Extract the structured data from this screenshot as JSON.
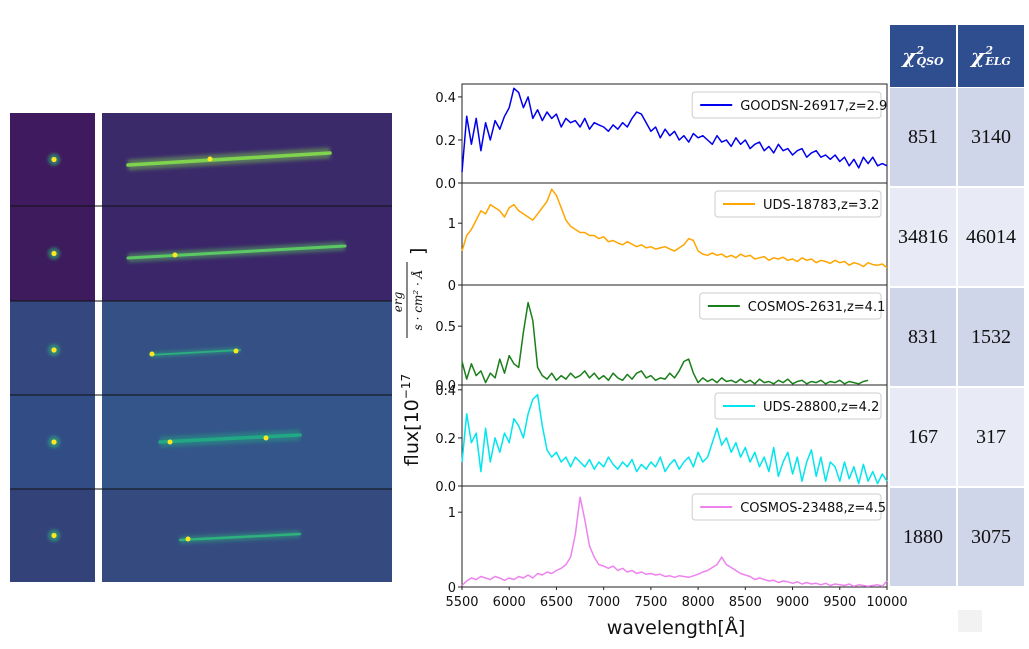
{
  "image_panels": {
    "rows": 5,
    "columns": [
      "direct-image",
      "dispersed-spectrum"
    ]
  },
  "table": {
    "headers": [
      {
        "sym": "χ",
        "sup": "2",
        "sub": "QSO"
      },
      {
        "sym": "χ",
        "sup": "2",
        "sub": "ELG"
      }
    ],
    "rows": [
      [
        "851",
        "3140"
      ],
      [
        "34816",
        "46014"
      ],
      [
        "831",
        "1532"
      ],
      [
        "167",
        "317"
      ],
      [
        "1880",
        "3075"
      ]
    ],
    "colors": {
      "header": "#2e4e8f",
      "row_a": "#cfd6ea",
      "row_b": "#e8ebf5"
    }
  },
  "chart_data": {
    "type": "line",
    "xlabel": "wavelength[Å]",
    "ylabel": "flux[10⁻¹⁷ erg / s·cm²·Å]",
    "xlim": [
      5500,
      10000
    ],
    "xticks": [
      "5500",
      "6000",
      "6500",
      "7000",
      "7500",
      "8000",
      "8500",
      "9000",
      "9500",
      "10000"
    ],
    "panels": [
      {
        "name": "GOODSN-26917,z=2.9",
        "color": "#0000ee",
        "ylim": [
          0,
          0.46
        ],
        "yticks": [
          "0.0",
          "0.2",
          "0.4"
        ],
        "x": [
          5500,
          5550,
          5600,
          5650,
          5700,
          5750,
          5800,
          5850,
          5900,
          5950,
          6000,
          6050,
          6100,
          6150,
          6200,
          6250,
          6300,
          6350,
          6400,
          6450,
          6500,
          6550,
          6600,
          6650,
          6700,
          6750,
          6800,
          6850,
          6900,
          6950,
          7000,
          7050,
          7100,
          7150,
          7200,
          7250,
          7300,
          7350,
          7400,
          7450,
          7500,
          7550,
          7600,
          7650,
          7700,
          7750,
          7800,
          7850,
          7900,
          7950,
          8000,
          8050,
          8100,
          8150,
          8200,
          8250,
          8300,
          8350,
          8400,
          8450,
          8500,
          8550,
          8600,
          8650,
          8700,
          8750,
          8800,
          8850,
          8900,
          8950,
          9000,
          9050,
          9100,
          9150,
          9200,
          9250,
          9300,
          9350,
          9400,
          9450,
          9500,
          9550,
          9600,
          9650,
          9700,
          9750,
          9800,
          9850,
          9900,
          9950,
          10000
        ],
        "y": [
          0.05,
          0.31,
          0.18,
          0.3,
          0.15,
          0.28,
          0.2,
          0.29,
          0.25,
          0.31,
          0.35,
          0.44,
          0.42,
          0.35,
          0.4,
          0.3,
          0.34,
          0.29,
          0.33,
          0.3,
          0.32,
          0.26,
          0.3,
          0.28,
          0.29,
          0.26,
          0.3,
          0.25,
          0.28,
          0.27,
          0.26,
          0.24,
          0.27,
          0.25,
          0.28,
          0.26,
          0.3,
          0.33,
          0.32,
          0.28,
          0.24,
          0.26,
          0.21,
          0.25,
          0.22,
          0.24,
          0.2,
          0.22,
          0.19,
          0.23,
          0.21,
          0.22,
          0.2,
          0.18,
          0.22,
          0.19,
          0.2,
          0.17,
          0.21,
          0.18,
          0.2,
          0.16,
          0.18,
          0.19,
          0.15,
          0.17,
          0.14,
          0.18,
          0.15,
          0.16,
          0.13,
          0.15,
          0.16,
          0.12,
          0.14,
          0.15,
          0.12,
          0.13,
          0.11,
          0.13,
          0.1,
          0.12,
          0.08,
          0.11,
          0.07,
          0.12,
          0.09,
          0.12,
          0.08,
          0.09,
          0.08
        ]
      },
      {
        "name": "UDS-18783,z=3.2",
        "color": "#ffa500",
        "ylim": [
          0,
          1.65
        ],
        "yticks": [
          "0",
          "1"
        ],
        "x": [
          5500,
          5550,
          5600,
          5650,
          5700,
          5750,
          5800,
          5850,
          5900,
          5950,
          6000,
          6050,
          6100,
          6150,
          6200,
          6250,
          6300,
          6350,
          6400,
          6450,
          6500,
          6550,
          6600,
          6650,
          6700,
          6750,
          6800,
          6850,
          6900,
          6950,
          7000,
          7050,
          7100,
          7150,
          7200,
          7250,
          7300,
          7350,
          7400,
          7450,
          7500,
          7550,
          7600,
          7650,
          7700,
          7750,
          7800,
          7850,
          7900,
          7950,
          8000,
          8050,
          8100,
          8150,
          8200,
          8250,
          8300,
          8350,
          8400,
          8450,
          8500,
          8550,
          8600,
          8650,
          8700,
          8750,
          8800,
          8850,
          8900,
          8950,
          9000,
          9050,
          9100,
          9150,
          9200,
          9250,
          9300,
          9350,
          9400,
          9450,
          9500,
          9550,
          9600,
          9650,
          9700,
          9750,
          9800,
          9850,
          9900,
          9950,
          10000
        ],
        "y": [
          0.55,
          0.8,
          0.9,
          1.05,
          1.2,
          1.15,
          1.3,
          1.25,
          1.2,
          1.1,
          1.25,
          1.3,
          1.2,
          1.15,
          1.1,
          1.05,
          1.15,
          1.25,
          1.35,
          1.55,
          1.45,
          1.25,
          1.05,
          0.95,
          0.9,
          0.85,
          0.85,
          0.8,
          0.8,
          0.75,
          0.78,
          0.7,
          0.72,
          0.68,
          0.65,
          0.7,
          0.66,
          0.62,
          0.65,
          0.6,
          0.62,
          0.58,
          0.6,
          0.62,
          0.58,
          0.55,
          0.6,
          0.65,
          0.75,
          0.72,
          0.55,
          0.5,
          0.48,
          0.52,
          0.48,
          0.5,
          0.45,
          0.48,
          0.44,
          0.5,
          0.46,
          0.48,
          0.42,
          0.44,
          0.46,
          0.4,
          0.44,
          0.42,
          0.45,
          0.4,
          0.42,
          0.38,
          0.44,
          0.4,
          0.42,
          0.36,
          0.4,
          0.38,
          0.35,
          0.4,
          0.36,
          0.38,
          0.32,
          0.36,
          0.34,
          0.3,
          0.36,
          0.33,
          0.32,
          0.34,
          0.28
        ]
      },
      {
        "name": "COSMOS-2631,z=4.1",
        "color": "#1a7f1a",
        "ylim": [
          0,
          0.85
        ],
        "yticks": [
          "0.0",
          "0.5"
        ],
        "x": [
          5500,
          5550,
          5600,
          5650,
          5700,
          5750,
          5800,
          5850,
          5900,
          5950,
          6000,
          6050,
          6100,
          6150,
          6200,
          6250,
          6300,
          6350,
          6400,
          6450,
          6500,
          6550,
          6600,
          6650,
          6700,
          6750,
          6800,
          6850,
          6900,
          6950,
          7000,
          7050,
          7100,
          7150,
          7200,
          7250,
          7300,
          7350,
          7400,
          7450,
          7500,
          7550,
          7600,
          7650,
          7700,
          7750,
          7800,
          7850,
          7900,
          7950,
          8000,
          8050,
          8100,
          8150,
          8200,
          8250,
          8300,
          8350,
          8400,
          8450,
          8500,
          8550,
          8600,
          8650,
          8700,
          8750,
          8800,
          8850,
          8900,
          8950,
          9000,
          9050,
          9100,
          9150,
          9200,
          9250,
          9300,
          9350,
          9400,
          9450,
          9500,
          9550,
          9600,
          9650,
          9700,
          9750,
          9800
        ],
        "y": [
          0.2,
          0.05,
          0.18,
          0.08,
          0.12,
          0.02,
          0.1,
          0.06,
          0.22,
          0.1,
          0.25,
          0.18,
          0.15,
          0.45,
          0.7,
          0.55,
          0.15,
          0.08,
          0.05,
          0.1,
          0.04,
          0.08,
          0.05,
          0.1,
          0.06,
          0.08,
          0.12,
          0.06,
          0.1,
          0.05,
          0.08,
          0.04,
          0.1,
          0.06,
          0.04,
          0.09,
          0.05,
          0.1,
          0.12,
          0.06,
          0.08,
          0.04,
          0.06,
          0.05,
          0.1,
          0.06,
          0.12,
          0.2,
          0.22,
          0.1,
          0.02,
          0.06,
          0.03,
          0.05,
          0.02,
          0.06,
          0.03,
          0.04,
          0.02,
          0.05,
          0.02,
          0.04,
          0.01,
          0.05,
          0.02,
          0.03,
          0.01,
          0.04,
          0.02,
          0.05,
          0.01,
          0.03,
          0.04,
          0.01,
          0.03,
          0.02,
          0.04,
          0.01,
          0.03,
          0.02,
          0.04,
          0.01,
          0.03,
          0.02,
          0.01,
          0.03,
          0.04
        ]
      },
      {
        "name": "UDS-28800,z=4.2",
        "color": "#00e5ee",
        "ylim": [
          0,
          0.42
        ],
        "yticks": [
          "0.0",
          "0.2",
          "0.4"
        ],
        "x": [
          5500,
          5550,
          5600,
          5650,
          5700,
          5750,
          5800,
          5850,
          5900,
          5950,
          6000,
          6050,
          6100,
          6150,
          6200,
          6250,
          6300,
          6350,
          6400,
          6450,
          6500,
          6550,
          6600,
          6650,
          6700,
          6750,
          6800,
          6850,
          6900,
          6950,
          7000,
          7050,
          7100,
          7150,
          7200,
          7250,
          7300,
          7350,
          7400,
          7450,
          7500,
          7550,
          7600,
          7650,
          7700,
          7750,
          7800,
          7850,
          7900,
          7950,
          8000,
          8050,
          8100,
          8150,
          8200,
          8250,
          8300,
          8350,
          8400,
          8450,
          8500,
          8550,
          8600,
          8650,
          8700,
          8750,
          8800,
          8850,
          8900,
          8950,
          9000,
          9050,
          9100,
          9150,
          9200,
          9250,
          9300,
          9350,
          9400,
          9450,
          9500,
          9550,
          9600,
          9650,
          9700,
          9750,
          9800,
          9850,
          9900,
          9950,
          10000
        ],
        "y": [
          0.1,
          0.3,
          0.18,
          0.22,
          0.06,
          0.24,
          0.1,
          0.2,
          0.14,
          0.22,
          0.18,
          0.28,
          0.25,
          0.2,
          0.3,
          0.36,
          0.38,
          0.25,
          0.15,
          0.12,
          0.14,
          0.1,
          0.12,
          0.08,
          0.12,
          0.1,
          0.08,
          0.11,
          0.07,
          0.1,
          0.08,
          0.12,
          0.09,
          0.07,
          0.1,
          0.08,
          0.11,
          0.06,
          0.09,
          0.07,
          0.1,
          0.08,
          0.12,
          0.06,
          0.09,
          0.11,
          0.07,
          0.1,
          0.12,
          0.08,
          0.14,
          0.1,
          0.12,
          0.18,
          0.24,
          0.17,
          0.2,
          0.14,
          0.18,
          0.12,
          0.16,
          0.1,
          0.14,
          0.08,
          0.12,
          0.06,
          0.16,
          0.04,
          0.1,
          0.14,
          0.05,
          0.12,
          0.02,
          0.1,
          0.15,
          0.04,
          0.12,
          0.02,
          0.1,
          0.08,
          0.02,
          0.1,
          0.03,
          0.08,
          0.01,
          0.09,
          0.02,
          0.06,
          0.01,
          0.05,
          0.02
        ]
      },
      {
        "name": "COSMOS-23488,z=4.5",
        "color": "#ee82ee",
        "ylim": [
          0,
          1.35
        ],
        "yticks": [
          "0",
          "1"
        ],
        "x": [
          5500,
          5550,
          5600,
          5650,
          5700,
          5750,
          5800,
          5850,
          5900,
          5950,
          6000,
          6050,
          6100,
          6150,
          6200,
          6250,
          6300,
          6350,
          6400,
          6450,
          6500,
          6550,
          6600,
          6650,
          6700,
          6750,
          6800,
          6850,
          6900,
          6950,
          7000,
          7050,
          7100,
          7150,
          7200,
          7250,
          7300,
          7350,
          7400,
          7450,
          7500,
          7550,
          7600,
          7650,
          7700,
          7750,
          7800,
          7850,
          7900,
          7950,
          8000,
          8050,
          8100,
          8150,
          8200,
          8250,
          8300,
          8350,
          8400,
          8450,
          8500,
          8550,
          8600,
          8650,
          8700,
          8750,
          8800,
          8850,
          8900,
          8950,
          9000,
          9050,
          9100,
          9150,
          9200,
          9250,
          9300,
          9350,
          9400,
          9450,
          9500,
          9550,
          9600,
          9650,
          9700,
          9750,
          9800,
          9850,
          9900,
          9950,
          10000
        ],
        "y": [
          0.02,
          0.08,
          0.12,
          0.1,
          0.14,
          0.12,
          0.1,
          0.14,
          0.12,
          0.09,
          0.12,
          0.1,
          0.14,
          0.12,
          0.16,
          0.12,
          0.18,
          0.16,
          0.2,
          0.18,
          0.22,
          0.25,
          0.3,
          0.4,
          0.7,
          1.2,
          0.9,
          0.55,
          0.4,
          0.3,
          0.28,
          0.25,
          0.28,
          0.22,
          0.25,
          0.2,
          0.22,
          0.18,
          0.2,
          0.17,
          0.18,
          0.16,
          0.17,
          0.14,
          0.15,
          0.13,
          0.15,
          0.14,
          0.13,
          0.15,
          0.17,
          0.2,
          0.22,
          0.26,
          0.3,
          0.4,
          0.3,
          0.26,
          0.22,
          0.18,
          0.16,
          0.14,
          0.1,
          0.12,
          0.1,
          0.08,
          0.09,
          0.06,
          0.08,
          0.07,
          0.05,
          0.07,
          0.04,
          0.06,
          0.04,
          0.05,
          0.03,
          0.05,
          0.02,
          0.04,
          0.03,
          0.02,
          0.04,
          0.01,
          0.03,
          0.02,
          0.01,
          0.02,
          0.03,
          0.01,
          0.08
        ]
      }
    ]
  }
}
